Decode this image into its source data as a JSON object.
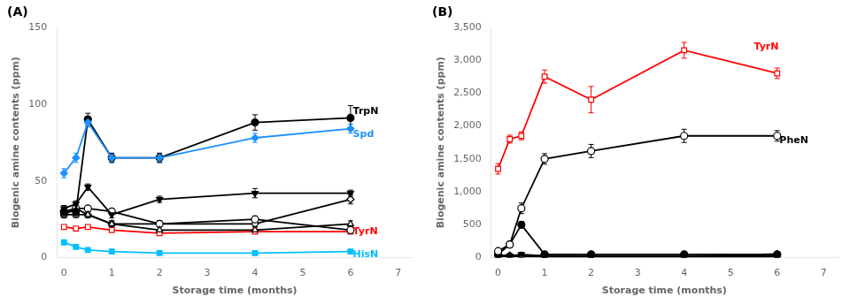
{
  "chart_data": [
    {
      "type": "line",
      "title": "(A)",
      "xlabel": "Storage time (months)",
      "ylabel": "Biogenic amine contents (ppm)",
      "x": [
        0,
        0.25,
        0.5,
        1,
        2,
        4,
        6
      ],
      "xlim": [
        -0.15,
        7.3
      ],
      "xticks": [
        0,
        1,
        2,
        3,
        4,
        5,
        6,
        7
      ],
      "ylim": [
        0,
        150
      ],
      "yticks": [
        0,
        50,
        100,
        150
      ],
      "grid": false,
      "series": [
        {
          "color": "#1E90FF",
          "marker": "filled-diamond",
          "values": [
            55,
            65,
            88,
            65,
            65,
            78,
            84
          ],
          "errors": [
            3,
            3,
            3,
            3,
            3,
            3,
            3
          ]
        },
        {
          "color": "#000000",
          "marker": "filled-circle",
          "values": [
            30,
            30,
            90,
            65,
            65,
            88,
            91
          ],
          "errors": [
            2,
            2,
            4,
            3,
            3,
            5,
            8
          ]
        },
        {
          "color": "#000000",
          "marker": "filled-triangle-down",
          "values": [
            32,
            35,
            46,
            28,
            38,
            42,
            42
          ],
          "errors": [
            2,
            2,
            2,
            2,
            2,
            3,
            2
          ]
        },
        {
          "color": "#000000",
          "marker": "open-triangle-up",
          "values": [
            28,
            28,
            28,
            22,
            18,
            18,
            22
          ],
          "errors": [
            2,
            2,
            2,
            2,
            2,
            2,
            2
          ]
        },
        {
          "color": "#000000",
          "marker": "open-circle",
          "values": [
            30,
            32,
            32,
            30,
            22,
            25,
            18
          ],
          "errors": [
            2,
            2,
            2,
            2,
            2,
            2,
            2
          ]
        },
        {
          "color": "#000000",
          "marker": "open-diamond",
          "values": [
            28,
            32,
            28,
            22,
            22,
            22,
            38
          ],
          "errors": [
            2,
            2,
            2,
            2,
            2,
            2,
            3
          ]
        },
        {
          "color": "#FF0000",
          "marker": "open-square",
          "values": [
            20,
            19,
            20,
            18,
            16,
            17,
            17
          ],
          "errors": [
            1,
            1,
            1,
            1,
            1,
            1,
            1
          ]
        },
        {
          "color": "#00BFFF",
          "marker": "filled-square",
          "values": [
            10,
            7,
            5,
            4,
            3,
            3,
            4
          ],
          "errors": [
            1,
            1,
            1,
            1,
            1,
            1,
            1
          ]
        }
      ],
      "annotations": [
        {
          "text": "TrpN",
          "x": 6.05,
          "y": 95,
          "color": "#000000"
        },
        {
          "text": "Spd",
          "x": 6.05,
          "y": 80,
          "color": "#1E90FF"
        },
        {
          "text": "TyrN",
          "x": 6.05,
          "y": 17,
          "color": "#FF0000"
        },
        {
          "text": "HisN",
          "x": 6.05,
          "y": 2,
          "color": "#00BFFF"
        }
      ]
    },
    {
      "type": "line",
      "title": "(B)",
      "xlabel": "Storage time (months)",
      "ylabel": "Biogenic amine contents (ppm)",
      "x": [
        0,
        0.25,
        0.5,
        1,
        2,
        4,
        6
      ],
      "xlim": [
        -0.15,
        7.3
      ],
      "xticks": [
        0,
        1,
        2,
        3,
        4,
        5,
        6,
        7
      ],
      "ylim": [
        0,
        3500
      ],
      "yticks": [
        0,
        500,
        1000,
        1500,
        2000,
        2500,
        3000,
        3500
      ],
      "grid": false,
      "series": [
        {
          "color": "#FF0000",
          "marker": "open-square",
          "values": [
            1350,
            1800,
            1850,
            2750,
            2400,
            3150,
            2800
          ],
          "errors": [
            80,
            60,
            60,
            100,
            200,
            120,
            80
          ]
        },
        {
          "color": "#000000",
          "marker": "open-circle",
          "values": [
            100,
            200,
            750,
            1500,
            1620,
            1850,
            1850
          ],
          "errors": [
            20,
            30,
            80,
            80,
            100,
            100,
            80
          ]
        },
        {
          "color": "#000000",
          "marker": "filled-circle",
          "values": [
            50,
            200,
            500,
            50,
            50,
            50,
            50
          ],
          "errors": [
            10,
            20,
            50,
            10,
            10,
            10,
            10
          ]
        },
        {
          "color": "#000000",
          "marker": "filled-triangle-down",
          "values": [
            30,
            30,
            50,
            25,
            20,
            20,
            20
          ],
          "errors": [
            5,
            5,
            5,
            5,
            5,
            5,
            5
          ]
        },
        {
          "color": "#000000",
          "marker": "open-triangle-up",
          "values": [
            20,
            20,
            20,
            15,
            15,
            15,
            15
          ],
          "errors": [
            3,
            3,
            3,
            3,
            3,
            3,
            3
          ]
        },
        {
          "color": "#000000",
          "marker": "filled-diamond",
          "values": [
            35,
            35,
            35,
            30,
            25,
            25,
            25
          ],
          "errors": [
            5,
            5,
            5,
            5,
            5,
            5,
            5
          ]
        },
        {
          "color": "#000000",
          "marker": "open-diamond",
          "values": [
            25,
            25,
            25,
            20,
            20,
            20,
            55
          ],
          "errors": [
            4,
            4,
            4,
            4,
            4,
            4,
            5
          ]
        }
      ],
      "annotations": [
        {
          "text": "TyrN",
          "x": 5.5,
          "y": 3200,
          "color": "#FF0000"
        },
        {
          "text": "PheN",
          "x": 6.05,
          "y": 1780,
          "color": "#000000"
        }
      ]
    }
  ]
}
